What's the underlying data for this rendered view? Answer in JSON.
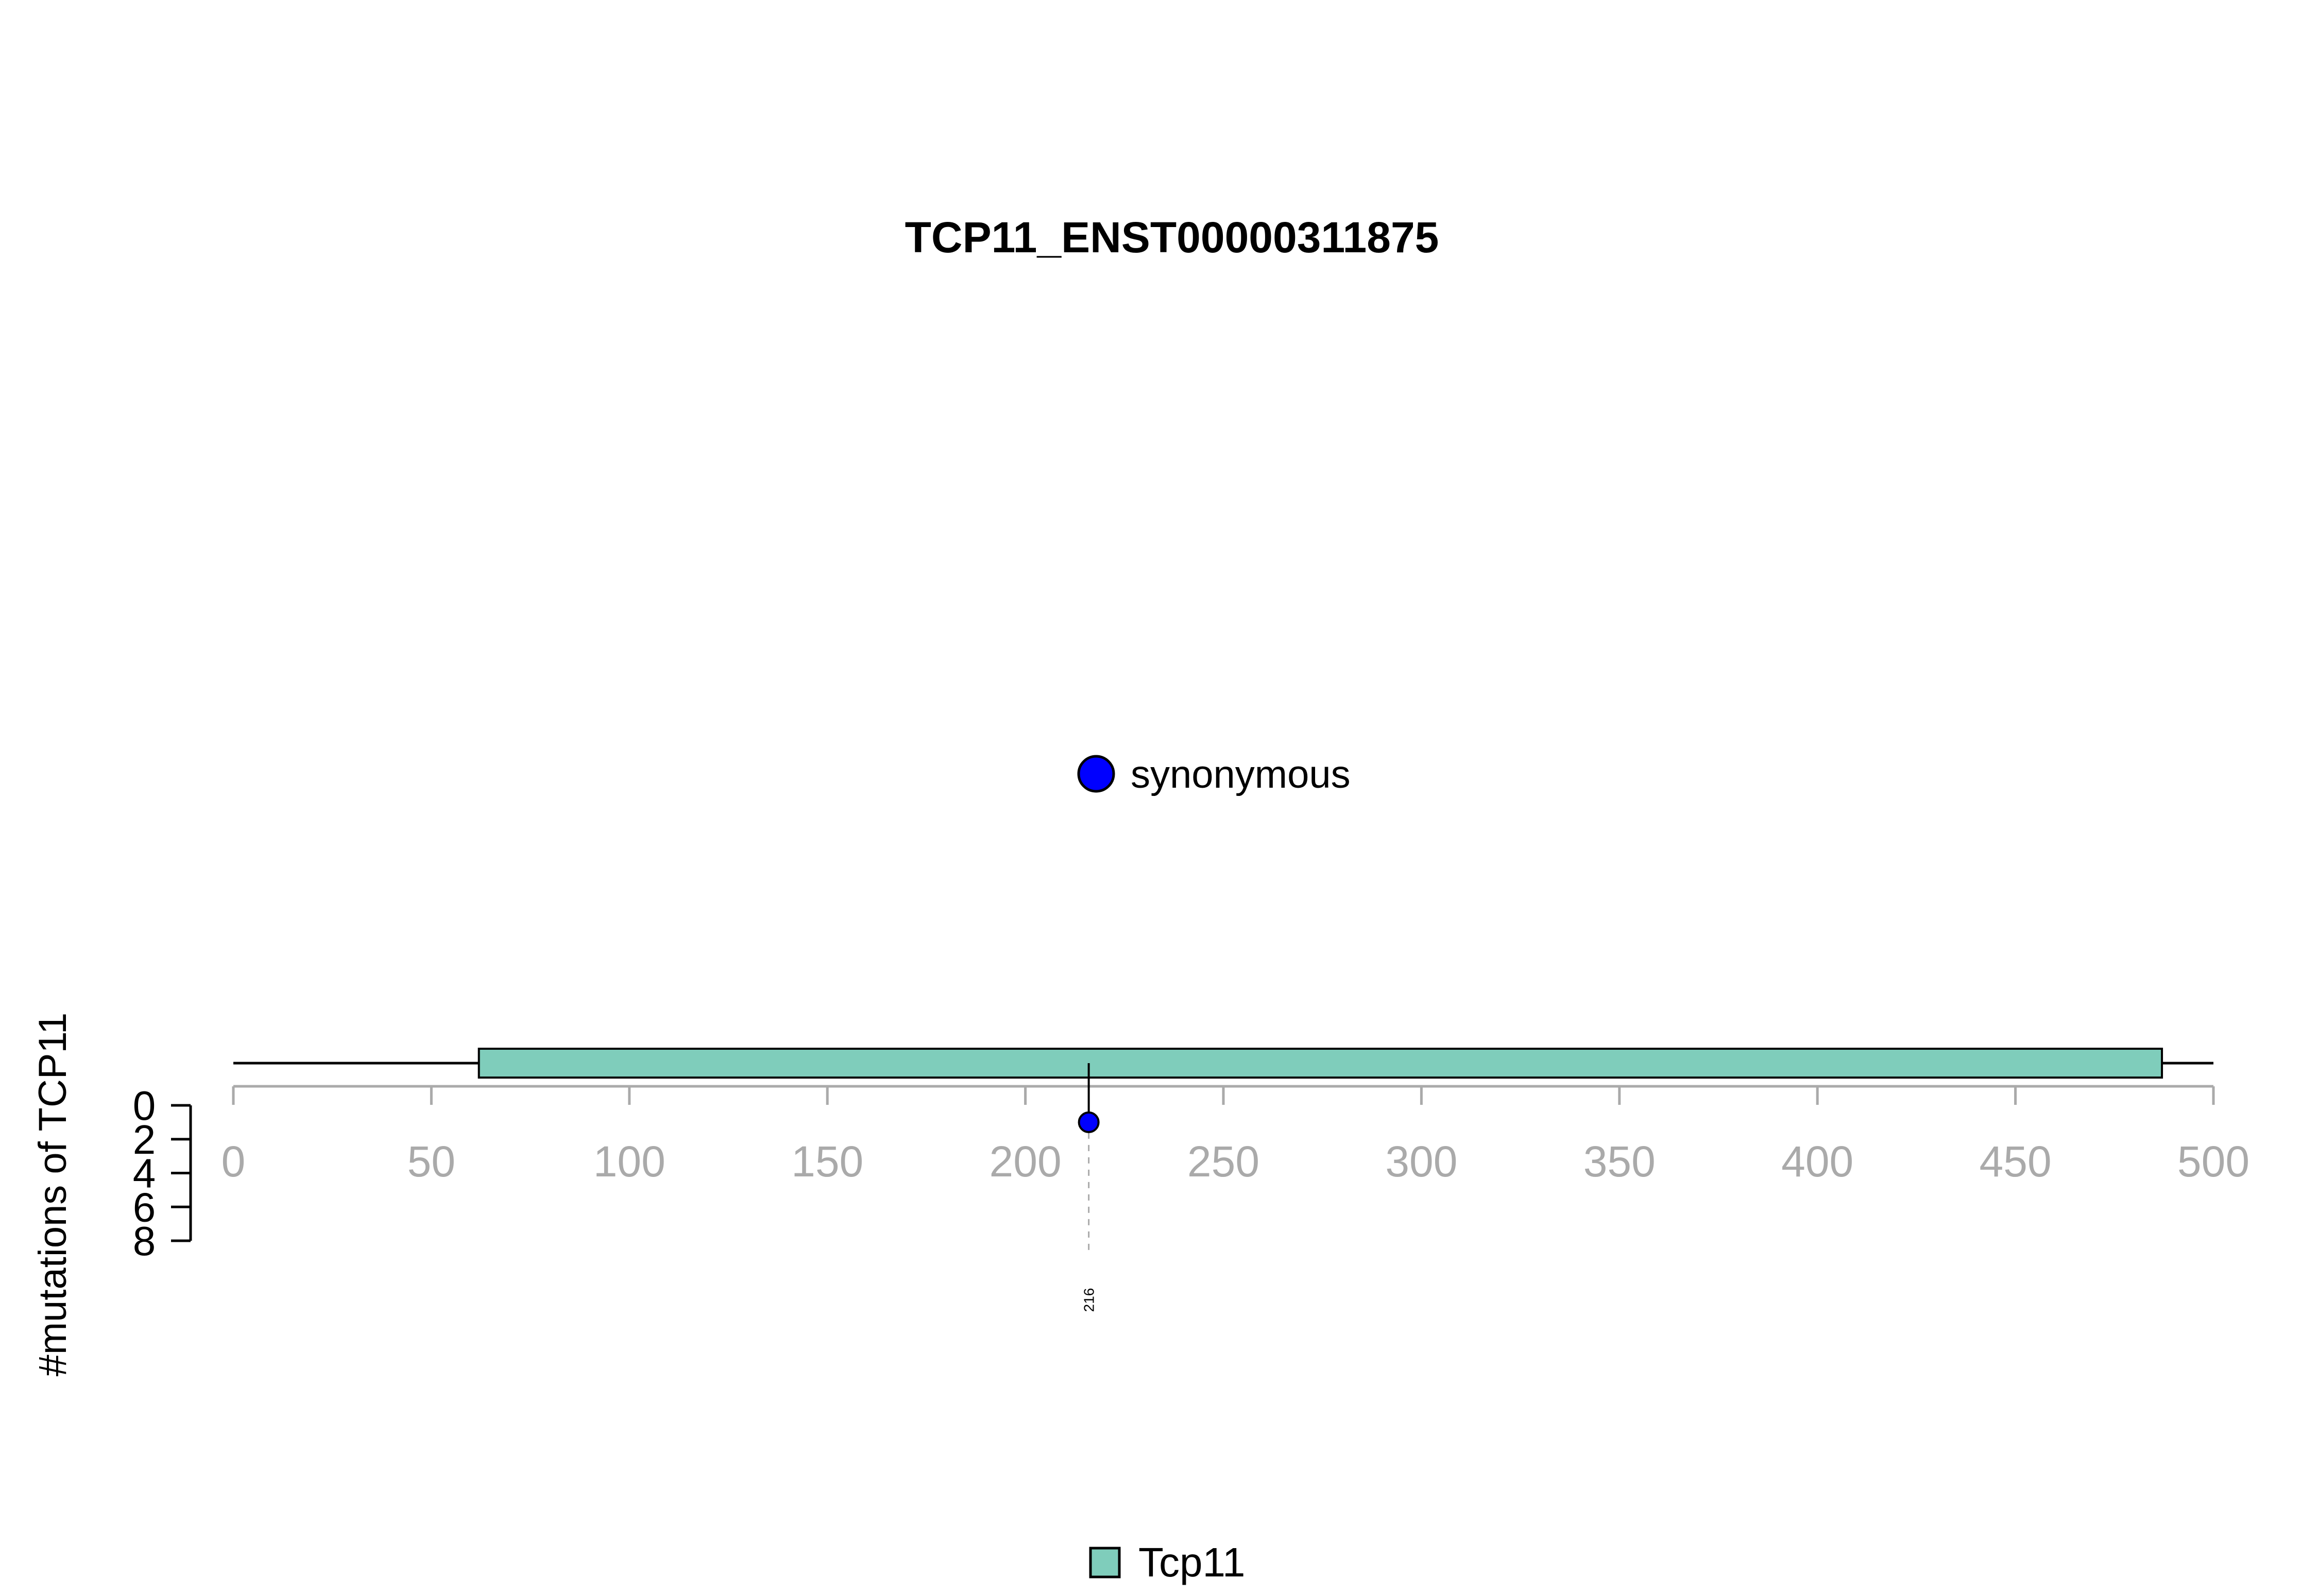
{
  "chart_data": {
    "type": "lollipop",
    "title": "TCP11_ENST00000311875",
    "ylabel": "#mutations of TCP11",
    "x_axis": {
      "range": [
        0,
        500
      ],
      "ticks": [
        0,
        50,
        100,
        150,
        200,
        250,
        300,
        350,
        400,
        450,
        500
      ],
      "tick_labels": [
        "0",
        "50",
        "100",
        "150",
        "200",
        "250",
        "300",
        "350",
        "400",
        "450",
        "500"
      ]
    },
    "y_axis": {
      "range": [
        0,
        8
      ],
      "ticks": [
        0,
        2,
        4,
        6,
        8
      ],
      "tick_labels": [
        "0",
        "2",
        "4",
        "6",
        "8"
      ],
      "direction": "downward"
    },
    "protein": {
      "start": 1,
      "end": 500
    },
    "domains": [
      {
        "name": "Tcp11",
        "start": 62,
        "end": 487,
        "color": "#7fcdbb"
      }
    ],
    "mutations": [
      {
        "position": 216,
        "count": 1,
        "type": "synonymous",
        "label": "216",
        "color": "#0000ff"
      }
    ],
    "legend_top": [
      {
        "label": "synonymous",
        "color": "#0000ff",
        "shape": "circle"
      }
    ],
    "legend_bottom": [
      {
        "label": "Tcp11",
        "color": "#7fcdbb",
        "shape": "square"
      }
    ],
    "axis_color": "#aaaaaa",
    "grid": false
  }
}
